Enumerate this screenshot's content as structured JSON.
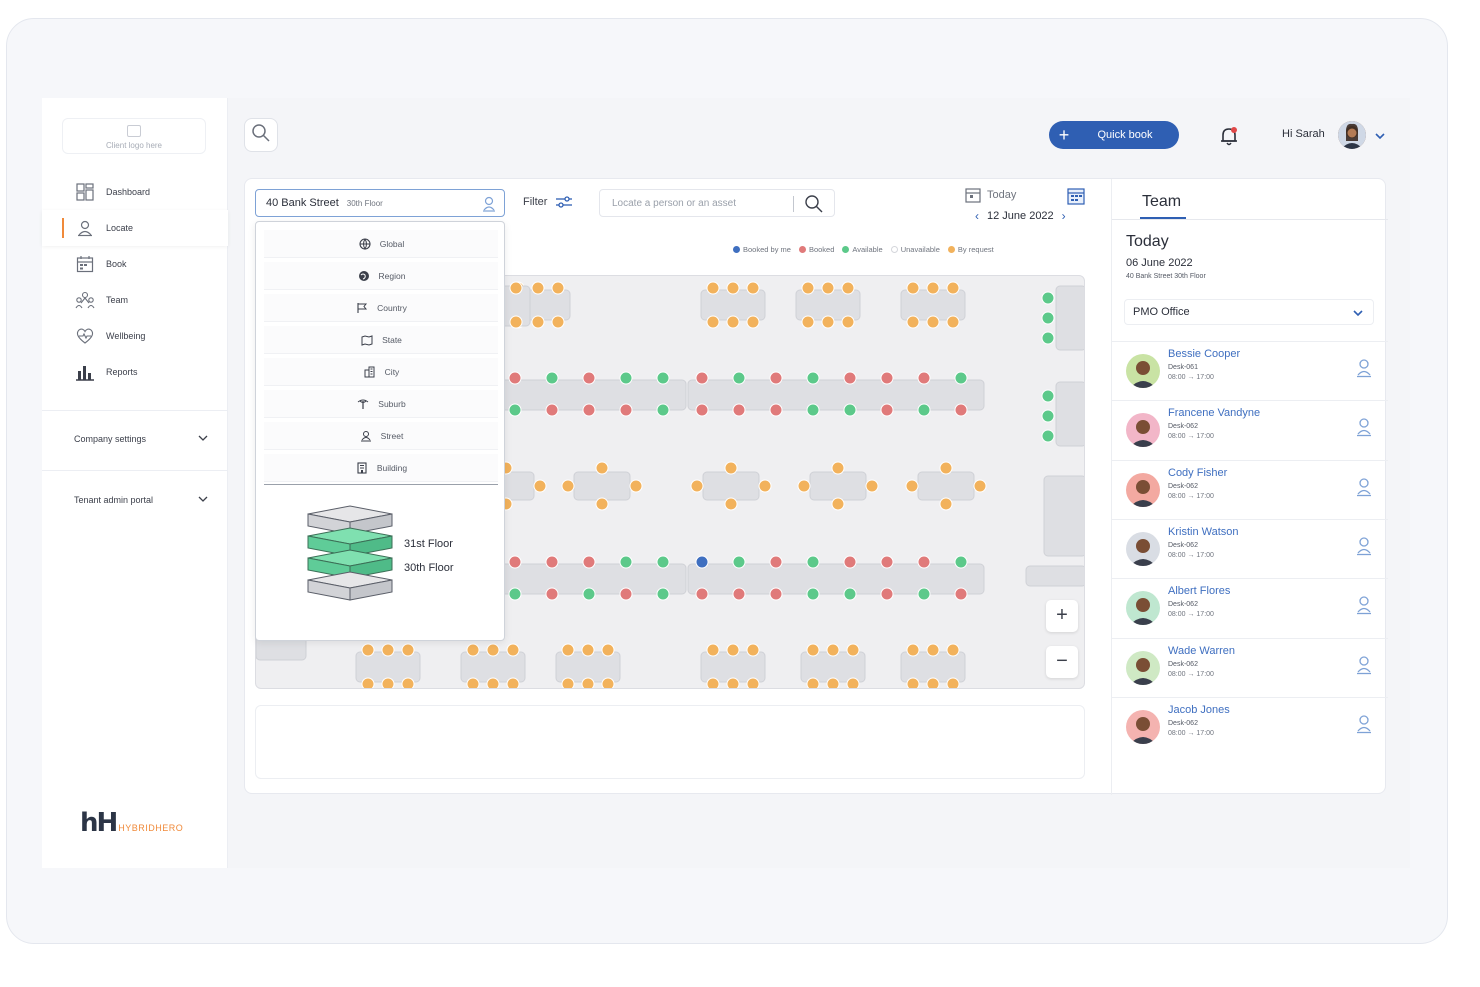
{
  "sidebar": {
    "logo_placeholder": "Client logo here",
    "items": [
      {
        "label": "Dashboard",
        "icon": "dashboard-icon"
      },
      {
        "label": "Locate",
        "icon": "locate-icon"
      },
      {
        "label": "Book",
        "icon": "book-icon"
      },
      {
        "label": "Team",
        "icon": "team-icon"
      },
      {
        "label": "Wellbeing",
        "icon": "wellbeing-icon"
      },
      {
        "label": "Reports",
        "icon": "reports-icon"
      }
    ],
    "active_index": 1,
    "company_settings": "Company settings",
    "tenant_admin": "Tenant admin portal",
    "brand_mark": "hH",
    "brand_word": "HYBRIDHERO"
  },
  "topbar": {
    "quick_book": "Quick book",
    "greeting": "Hi Sarah"
  },
  "toolbar": {
    "location": "40 Bank Street",
    "floor": "30th Floor",
    "filter": "Filter",
    "search_placeholder": "Locate a person or an asset",
    "today": "Today",
    "date": "12 June 2022"
  },
  "legend": [
    {
      "label": "Booked by me",
      "color": "#3f6fc0"
    },
    {
      "label": "Booked",
      "color": "#e07a7a"
    },
    {
      "label": "Available",
      "color": "#5cc98a"
    },
    {
      "label": "Unavailable",
      "color": "#d4d6db"
    },
    {
      "label": "By request",
      "color": "#f2b25c"
    }
  ],
  "dropdown": {
    "levels": [
      {
        "label": "Global",
        "icon": "globe-icon"
      },
      {
        "label": "Region",
        "icon": "region-icon"
      },
      {
        "label": "Country",
        "icon": "flag-icon"
      },
      {
        "label": "State",
        "icon": "state-icon"
      },
      {
        "label": "City",
        "icon": "city-icon"
      },
      {
        "label": "Suburb",
        "icon": "suburb-icon"
      },
      {
        "label": "Street",
        "icon": "street-icon"
      },
      {
        "label": "Building",
        "icon": "building-icon"
      }
    ],
    "floors": [
      "31st Floor",
      "30th Floor"
    ]
  },
  "zoom": {
    "in": "+",
    "out": "−"
  },
  "team": {
    "tab": "Team",
    "today": "Today",
    "date": "06 June 2022",
    "location": "40 Bank Street  30th Floor",
    "group": "PMO Office",
    "members": [
      {
        "name": "Bessie Cooper",
        "desk": "Desk-061",
        "time": "08:00  → 17:00",
        "color": "#c9e3a4"
      },
      {
        "name": "Francene Vandyne",
        "desk": "Desk-062",
        "time": "08:00  → 17:00",
        "color": "#f2b6c8"
      },
      {
        "name": "Cody Fisher",
        "desk": "Desk-062",
        "time": "08:00  → 17:00",
        "color": "#f3a9a1"
      },
      {
        "name": "Kristin Watson",
        "desk": "Desk-062",
        "time": "08:00  → 17:00",
        "color": "#d9dde4"
      },
      {
        "name": "Albert Flores",
        "desk": "Desk-062",
        "time": "08:00  → 17:00",
        "color": "#bfe7d0"
      },
      {
        "name": "Wade Warren",
        "desk": "Desk-062",
        "time": "08:00  → 17:00",
        "color": "#cfe9c4"
      },
      {
        "name": "Jacob Jones",
        "desk": "Desk-062",
        "time": "08:00  → 17:00",
        "color": "#f4b3b0"
      }
    ]
  }
}
